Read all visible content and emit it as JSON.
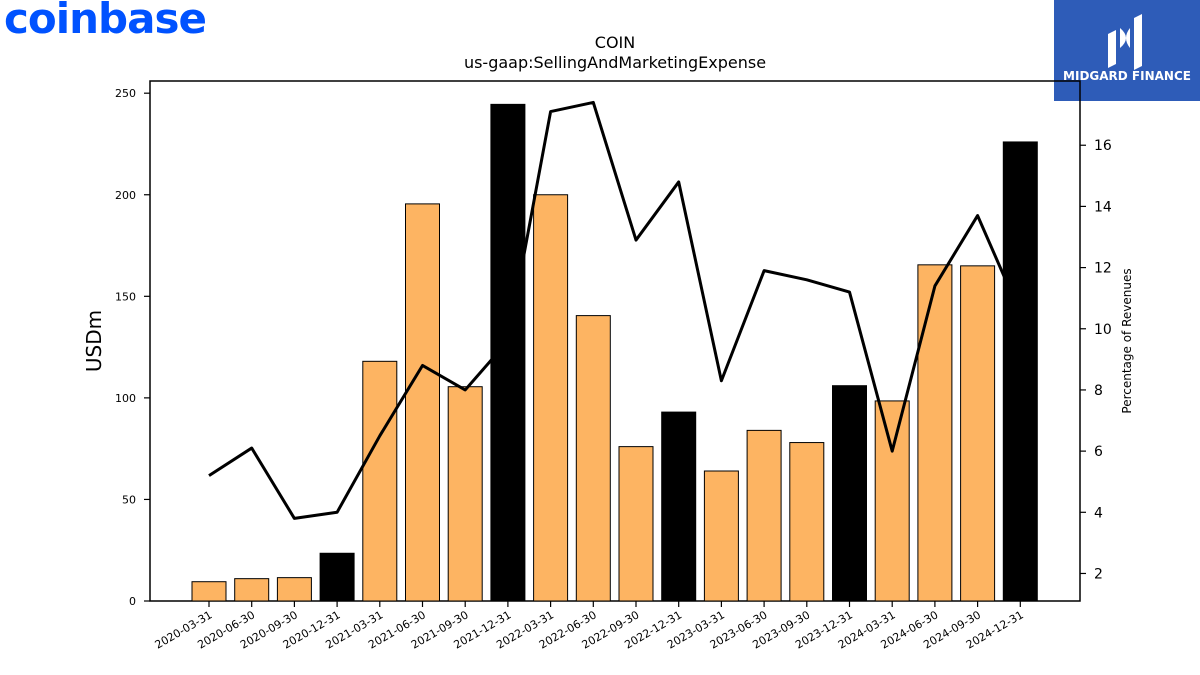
{
  "header": {
    "brand_logo_text": "coinbase",
    "badge_text": "MIDGARD FINANCE",
    "brand_color": "#0052ff",
    "badge_color": "#2e5cb8"
  },
  "chart_data": {
    "type": "bar",
    "title": "COIN",
    "subtitle": "us-gaap:SellingAndMarketingExpense",
    "ylabel": "USDm",
    "y2label": "Percentage of Revenues",
    "ylim": [
      0,
      256
    ],
    "y2lim": [
      1.1,
      18.1
    ],
    "yticks": [
      0,
      50,
      100,
      150,
      200,
      250
    ],
    "y2ticks": [
      2,
      4,
      6,
      8,
      10,
      12,
      14,
      16
    ],
    "categories": [
      "2020-03-31",
      "2020-06-30",
      "2020-09-30",
      "2020-12-31",
      "2021-03-31",
      "2021-06-30",
      "2021-09-30",
      "2021-12-31",
      "2022-03-31",
      "2022-06-30",
      "2022-09-30",
      "2022-12-31",
      "2023-03-31",
      "2023-06-30",
      "2023-09-30",
      "2023-12-31",
      "2024-03-31",
      "2024-06-30",
      "2024-09-30",
      "2024-12-31"
    ],
    "series": [
      {
        "type": "bar",
        "values": [
          9.5,
          11,
          11.5,
          23.5,
          118,
          195.5,
          105.5,
          244.5,
          200,
          140.5,
          76,
          93,
          64,
          84,
          78,
          106,
          98.5,
          165.5,
          165,
          226
        ],
        "colors": [
          "#fdb462",
          "#fdb462",
          "#fdb462",
          "#000000",
          "#fdb462",
          "#fdb462",
          "#fdb462",
          "#000000",
          "#fdb462",
          "#fdb462",
          "#fdb462",
          "#000000",
          "#fdb462",
          "#fdb462",
          "#fdb462",
          "#000000",
          "#fdb462",
          "#fdb462",
          "#fdb462",
          "#000000"
        ]
      },
      {
        "type": "line",
        "axis": "right",
        "color": "#000000",
        "values": [
          5.2,
          6.1,
          3.8,
          4.0,
          6.5,
          8.8,
          8.0,
          9.6,
          17.1,
          17.4,
          12.9,
          14.8,
          8.3,
          11.9,
          11.6,
          11.2,
          6.0,
          11.4,
          13.7,
          10.5
        ]
      }
    ],
    "grid": false,
    "legend": "none"
  }
}
